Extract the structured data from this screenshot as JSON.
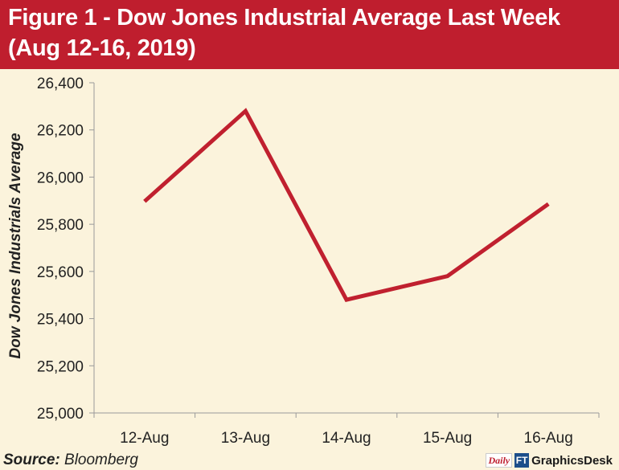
{
  "header": {
    "title_line1": "Figure 1 - Dow Jones Industrial Average Last Week",
    "title_line2": "(Aug 12-16, 2019)"
  },
  "chart_data": {
    "type": "line",
    "categories": [
      "12-Aug",
      "13-Aug",
      "14-Aug",
      "15-Aug",
      "16-Aug"
    ],
    "series": [
      {
        "values": [
          25897,
          26280,
          25480,
          25580,
          25886
        ],
        "color": "#c0202f"
      }
    ],
    "ylabel": "Dow Jones Industrials Average",
    "xlabel": "",
    "ylim": [
      25000,
      26400
    ],
    "yticks": [
      25000,
      25200,
      25400,
      25600,
      25800,
      26000,
      26200,
      26400
    ],
    "ytick_labels": [
      "25,000",
      "25,200",
      "25,400",
      "25,600",
      "25,800",
      "26,000",
      "26,200",
      "26,400"
    ],
    "grid": false,
    "legend": "none"
  },
  "footer": {
    "source_label": "Source:",
    "source_value": "Bloomberg",
    "credit_logo": "Daily",
    "credit_badge": "FT",
    "credit_desk": "GraphicsDesk"
  }
}
